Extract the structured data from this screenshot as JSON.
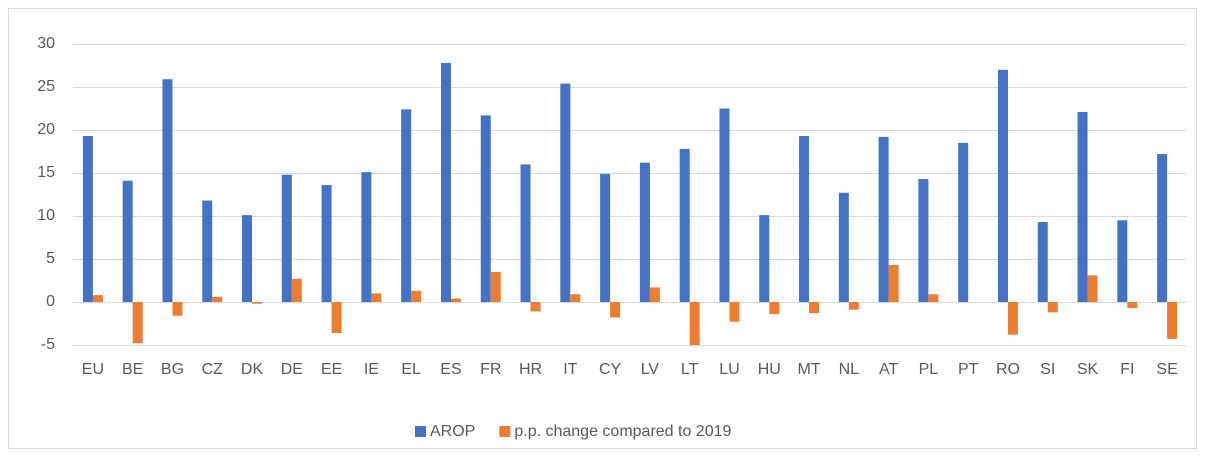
{
  "chart_data": {
    "type": "bar",
    "categories": [
      "EU",
      "BE",
      "BG",
      "CZ",
      "DK",
      "DE",
      "EE",
      "IE",
      "EL",
      "ES",
      "FR",
      "HR",
      "IT",
      "CY",
      "LV",
      "LT",
      "LU",
      "HU",
      "MT",
      "NL",
      "AT",
      "PL",
      "PT",
      "RO",
      "SI",
      "SK",
      "FI",
      "SE"
    ],
    "series": [
      {
        "name": "AROP",
        "color": "#4472c4",
        "values": [
          19.3,
          14.1,
          25.9,
          11.8,
          10.1,
          14.8,
          13.6,
          15.1,
          22.4,
          27.8,
          21.7,
          16.0,
          25.4,
          14.9,
          16.2,
          17.8,
          22.5,
          10.1,
          19.3,
          12.7,
          19.2,
          14.3,
          18.5,
          27.0,
          9.3,
          22.1,
          9.5,
          17.2
        ]
      },
      {
        "name": "p.p. change compared to 2019",
        "color": "#ed7d31",
        "values": [
          0.8,
          -4.8,
          -1.6,
          0.6,
          -0.2,
          2.7,
          -3.6,
          1.0,
          1.3,
          0.4,
          3.5,
          -1.1,
          0.9,
          -1.8,
          1.7,
          -5.0,
          -2.3,
          -1.4,
          -1.3,
          -0.9,
          4.3,
          0.9,
          0,
          -3.8,
          -1.2,
          3.1,
          -0.7,
          -4.3
        ]
      }
    ],
    "ylim": [
      -5,
      30
    ],
    "yticks": [
      -5,
      0,
      5,
      10,
      15,
      20,
      25,
      30
    ],
    "grid": true,
    "legend": "bottom"
  }
}
